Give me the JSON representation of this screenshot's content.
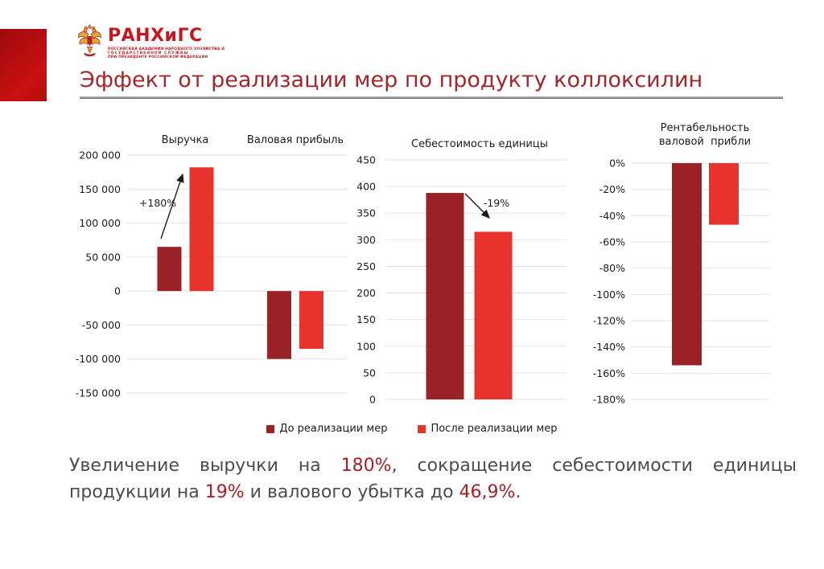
{
  "header": {
    "title": "Эффект от реализации мер по продукту коллоксилин"
  },
  "logo": {
    "name": "РАНХиГС",
    "sub_lines": [
      "РОССИЙСКАЯ АКАДЕМИЯ НАРОДНОГО ХОЗЯЙСТВА И",
      "ГОСУДАРСТВЕННОЙ СЛУЖБЫ",
      "ПРИ ПРЕЗИДЕНТЕ РОССИЙСКОЙ ФЕДЕРАЦИИ"
    ]
  },
  "colors": {
    "accent_dark_red": "#9A2227",
    "accent_red": "#E8332C",
    "title_red": "#A2272B",
    "logo_red": "#C3191E",
    "left_block_red": "#C90F11",
    "summary_gray": "#4D4D4F",
    "summary_red": "#A81E24",
    "gridline": "#E2E2E2"
  },
  "legend": {
    "items": [
      {
        "label": "До реализации мер",
        "color": "#9A2227"
      },
      {
        "label": "После реализации мер",
        "color": "#E8332C"
      }
    ]
  },
  "chart_data": [
    {
      "type": "bar",
      "title": "",
      "groups": [
        "Выручка",
        "Валовая прибыль"
      ],
      "series": [
        {
          "name": "До реализации мер",
          "values": [
            65000,
            -100000
          ]
        },
        {
          "name": "После реализации мер",
          "values": [
            182000,
            -85000
          ]
        }
      ],
      "ylim": [
        -150000,
        200000
      ],
      "yticks": [
        200000,
        150000,
        100000,
        50000,
        0,
        -50000,
        -100000,
        -150000
      ],
      "ytick_labels": [
        "200 000",
        "150 000",
        "100 000",
        "50 000",
        "0",
        "-50 000",
        "-100 000",
        "-150 000"
      ],
      "annotation": {
        "text": "+180%",
        "direction": "up"
      },
      "grid": true,
      "legend_position": "bottom"
    },
    {
      "type": "bar",
      "title": "Себестоимость единицы",
      "groups": [
        ""
      ],
      "series": [
        {
          "name": "До реализации мер",
          "values": [
            388
          ]
        },
        {
          "name": "После реализации мер",
          "values": [
            315
          ]
        }
      ],
      "ylim": [
        0,
        450
      ],
      "yticks": [
        450,
        400,
        350,
        300,
        250,
        200,
        150,
        100,
        50,
        0
      ],
      "ytick_labels": [
        "450",
        "400",
        "350",
        "300",
        "250",
        "200",
        "150",
        "100",
        "50",
        "0"
      ],
      "annotation": {
        "text": "-19%",
        "direction": "down"
      },
      "grid": true,
      "legend_position": "bottom"
    },
    {
      "type": "bar",
      "title": "Рентабельность\nваловой  прибли",
      "groups": [
        ""
      ],
      "series": [
        {
          "name": "До реализации мер",
          "values": [
            -154
          ]
        },
        {
          "name": "После реализации мер",
          "values": [
            -46.9
          ]
        }
      ],
      "ylim": [
        -180,
        0
      ],
      "yticks": [
        0,
        -20,
        -40,
        -60,
        -80,
        -100,
        -120,
        -140,
        -160,
        -180
      ],
      "ytick_labels": [
        "0%",
        "-20%",
        "-40%",
        "-60%",
        "-80%",
        "-100%",
        "-120%",
        "-140%",
        "-160%",
        "-180%"
      ],
      "annotation": null,
      "grid": true,
      "legend_position": "bottom"
    }
  ],
  "summary": {
    "lines": [
      {
        "segments": [
          {
            "text": "Увеличение выручки на ",
            "red": false
          },
          {
            "text": "180%",
            "red": true
          },
          {
            "text": ", сокращение себестоимости единицы",
            "red": false
          }
        ]
      },
      {
        "segments": [
          {
            "text": "продукции на ",
            "red": false
          },
          {
            "text": "19%",
            "red": true
          },
          {
            "text": " и валового убытка до ",
            "red": false
          },
          {
            "text": "46,9%",
            "red": true
          },
          {
            "text": ".",
            "red": false
          }
        ]
      }
    ]
  }
}
